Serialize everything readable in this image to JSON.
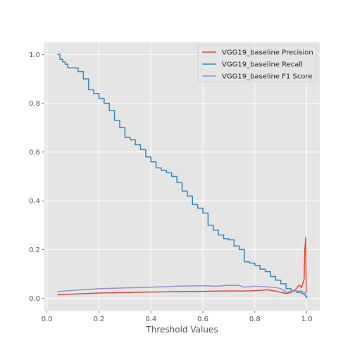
{
  "chart_data": {
    "type": "line",
    "title": "",
    "xlabel": "Threshold Values",
    "ylabel": "",
    "xlim": [
      -0.01,
      1.05
    ],
    "ylim": [
      -0.05,
      1.05
    ],
    "xticks": [
      0.0,
      0.2,
      0.4,
      0.6,
      0.8,
      1.0
    ],
    "xtick_labels": [
      "0.0",
      "0.2",
      "0.4",
      "0.6",
      "0.8",
      "1.0"
    ],
    "yticks": [
      0.0,
      0.2,
      0.4,
      0.6,
      0.8,
      1.0
    ],
    "ytick_labels": [
      "0.0",
      "0.2",
      "0.4",
      "0.6",
      "0.8",
      "1.0"
    ],
    "grid": true,
    "legend_position": "top-right",
    "background_color": "#E5E5E5",
    "series": [
      {
        "name": "VGG19_baseline Precision",
        "color": "#E24A33",
        "x": [
          0.04,
          0.1,
          0.2,
          0.3,
          0.4,
          0.5,
          0.6,
          0.7,
          0.75,
          0.8,
          0.85,
          0.88,
          0.9,
          0.92,
          0.94,
          0.96,
          0.97,
          0.98,
          0.99,
          0.992,
          0.994,
          0.996,
          0.997,
          0.998
        ],
        "y": [
          0.015,
          0.018,
          0.022,
          0.024,
          0.026,
          0.028,
          0.029,
          0.031,
          0.03,
          0.032,
          0.035,
          0.03,
          0.025,
          0.02,
          0.025,
          0.04,
          0.055,
          0.045,
          0.08,
          0.2,
          0.22,
          0.25,
          0.12,
          0.02
        ]
      },
      {
        "name": "VGG19_baseline Recall",
        "color": "#348ABD",
        "x": [
          0.04,
          0.05,
          0.06,
          0.07,
          0.08,
          0.1,
          0.12,
          0.14,
          0.16,
          0.18,
          0.2,
          0.22,
          0.24,
          0.26,
          0.28,
          0.3,
          0.32,
          0.34,
          0.36,
          0.38,
          0.4,
          0.42,
          0.44,
          0.46,
          0.48,
          0.5,
          0.52,
          0.54,
          0.56,
          0.58,
          0.6,
          0.62,
          0.64,
          0.66,
          0.68,
          0.7,
          0.72,
          0.74,
          0.76,
          0.78,
          0.8,
          0.82,
          0.84,
          0.86,
          0.88,
          0.9,
          0.92,
          0.94,
          0.96,
          0.98,
          0.99,
          0.995,
          1.0
        ],
        "y": [
          1.0,
          0.98,
          0.97,
          0.96,
          0.945,
          0.945,
          0.93,
          0.9,
          0.855,
          0.84,
          0.82,
          0.8,
          0.77,
          0.73,
          0.7,
          0.66,
          0.65,
          0.63,
          0.61,
          0.58,
          0.56,
          0.535,
          0.525,
          0.515,
          0.5,
          0.475,
          0.44,
          0.42,
          0.385,
          0.37,
          0.35,
          0.3,
          0.28,
          0.26,
          0.245,
          0.24,
          0.215,
          0.2,
          0.15,
          0.145,
          0.135,
          0.12,
          0.11,
          0.09,
          0.075,
          0.06,
          0.04,
          0.03,
          0.025,
          0.02,
          0.015,
          0.01,
          0.0
        ]
      },
      {
        "name": "VGG19_baseline F1 Score",
        "color": "#988ED5",
        "x": [
          0.04,
          0.1,
          0.2,
          0.3,
          0.4,
          0.5,
          0.55,
          0.6,
          0.65,
          0.7,
          0.74,
          0.76,
          0.8,
          0.84,
          0.88,
          0.9,
          0.92,
          0.94,
          0.96,
          0.98,
          0.99,
          1.0
        ],
        "y": [
          0.028,
          0.033,
          0.04,
          0.043,
          0.046,
          0.05,
          0.051,
          0.052,
          0.05,
          0.054,
          0.053,
          0.046,
          0.05,
          0.048,
          0.045,
          0.04,
          0.025,
          0.028,
          0.03,
          0.03,
          0.025,
          0.025
        ]
      }
    ]
  }
}
